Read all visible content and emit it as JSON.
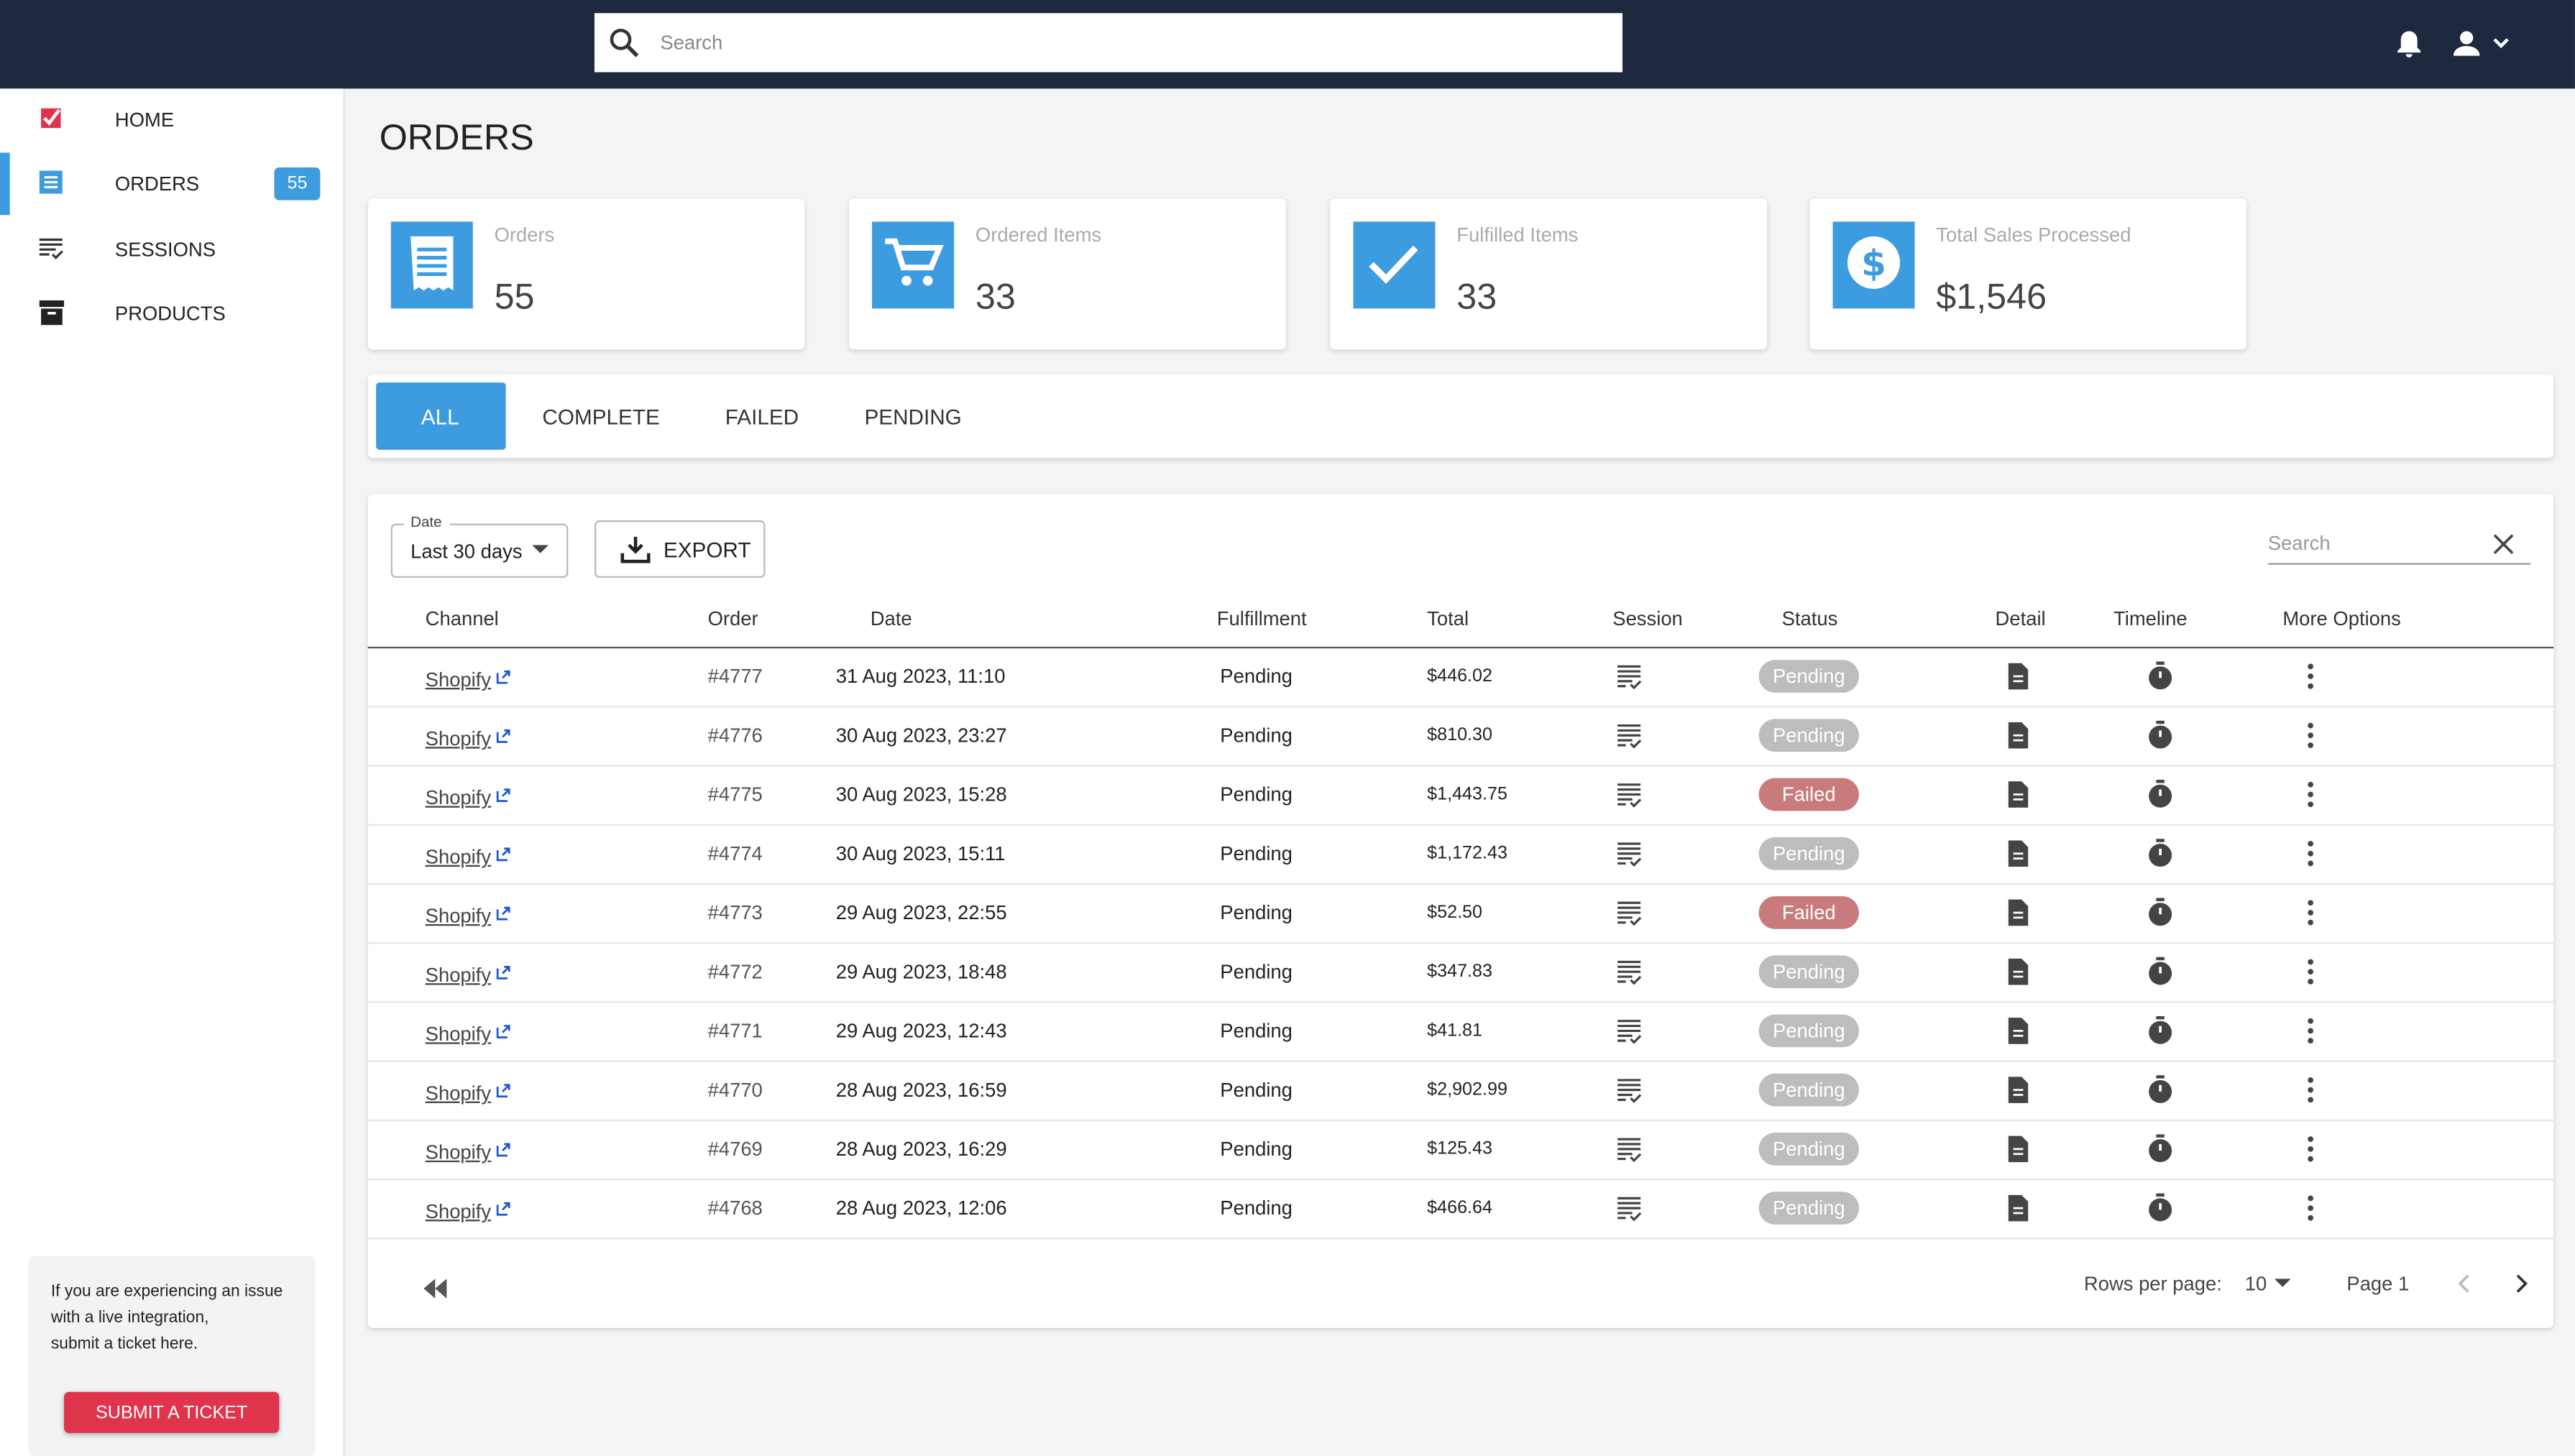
{
  "header": {
    "search_placeholder": "Search"
  },
  "sidebar": {
    "nav": [
      {
        "label": "HOME"
      },
      {
        "label": "ORDERS",
        "badge": "55"
      },
      {
        "label": "SESSIONS"
      },
      {
        "label": "PRODUCTS"
      }
    ],
    "help_lines": [
      "If you are experiencing an issue",
      "with a live integration,",
      "submit a ticket here."
    ],
    "help_button": "SUBMIT A TICKET"
  },
  "page": {
    "title": "ORDERS",
    "stats": [
      {
        "label": "Orders",
        "value": "55"
      },
      {
        "label": "Ordered Items",
        "value": "33"
      },
      {
        "label": "Fulfilled Items",
        "value": "33"
      },
      {
        "label": "Total Sales Processed",
        "value": "$1,546"
      }
    ],
    "tabs": [
      "ALL",
      "COMPLETE",
      "FAILED",
      "PENDING"
    ],
    "filter": {
      "legend": "Date",
      "value": "Last 30 days",
      "export": "EXPORT",
      "search_placeholder": "Search"
    },
    "table": {
      "columns": [
        "Channel",
        "Order",
        "Date",
        "Fulfillment",
        "Total",
        "Session",
        "Status",
        "Detail",
        "Timeline",
        "More Options"
      ],
      "rows": [
        {
          "channel": "Shopify",
          "order": "#4777",
          "date": "31 Aug 2023, 11:10",
          "fulfillment": "Pending",
          "total": "$446.02",
          "status": "Pending",
          "status_color": "#bdbdbd"
        },
        {
          "channel": "Shopify",
          "order": "#4776",
          "date": "30 Aug 2023, 23:27",
          "fulfillment": "Pending",
          "total": "$810.30",
          "status": "Pending",
          "status_color": "#bdbdbd"
        },
        {
          "channel": "Shopify",
          "order": "#4775",
          "date": "30 Aug 2023, 15:28",
          "fulfillment": "Pending",
          "total": "$1,443.75",
          "status": "Failed",
          "status_color": "#c97b7b"
        },
        {
          "channel": "Shopify",
          "order": "#4774",
          "date": "30 Aug 2023, 15:11",
          "fulfillment": "Pending",
          "total": "$1,172.43",
          "status": "Pending",
          "status_color": "#bdbdbd"
        },
        {
          "channel": "Shopify",
          "order": "#4773",
          "date": "29 Aug 2023, 22:55",
          "fulfillment": "Pending",
          "total": "$52.50",
          "status": "Failed",
          "status_color": "#c97b7b"
        },
        {
          "channel": "Shopify",
          "order": "#4772",
          "date": "29 Aug 2023, 18:48",
          "fulfillment": "Pending",
          "total": "$347.83",
          "status": "Pending",
          "status_color": "#bdbdbd"
        },
        {
          "channel": "Shopify",
          "order": "#4771",
          "date": "29 Aug 2023, 12:43",
          "fulfillment": "Pending",
          "total": "$41.81",
          "status": "Pending",
          "status_color": "#bdbdbd"
        },
        {
          "channel": "Shopify",
          "order": "#4770",
          "date": "28 Aug 2023, 16:59",
          "fulfillment": "Pending",
          "total": "$2,902.99",
          "status": "Pending",
          "status_color": "#bdbdbd"
        },
        {
          "channel": "Shopify",
          "order": "#4769",
          "date": "28 Aug 2023, 16:29",
          "fulfillment": "Pending",
          "total": "$125.43",
          "status": "Pending",
          "status_color": "#bdbdbd"
        },
        {
          "channel": "Shopify",
          "order": "#4768",
          "date": "28 Aug 2023, 12:06",
          "fulfillment": "Pending",
          "total": "$466.64",
          "status": "Pending",
          "status_color": "#bdbdbd"
        }
      ]
    },
    "pagination": {
      "rows_per_page_label": "Rows per page:",
      "rows_per_page": "10",
      "page": "Page 1"
    }
  }
}
